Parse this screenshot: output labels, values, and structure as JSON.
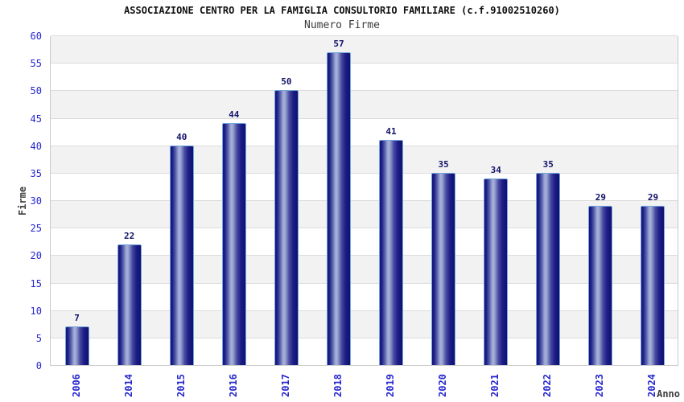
{
  "header": {
    "title": "ASSOCIAZIONE CENTRO PER LA FAMIGLIA CONSULTORIO FAMILIARE (c.f.91002510260)",
    "subtitle": "Numero Firme"
  },
  "axes": {
    "y_label": "Firme",
    "x_label": "Anno"
  },
  "chart_data": {
    "type": "bar",
    "title": "Numero Firme",
    "categories": [
      "2006",
      "2014",
      "2015",
      "2016",
      "2017",
      "2018",
      "2019",
      "2020",
      "2021",
      "2022",
      "2023",
      "2024"
    ],
    "values": [
      7,
      22,
      40,
      44,
      50,
      57,
      41,
      35,
      34,
      35,
      29,
      29
    ],
    "xlabel": "Anno",
    "ylabel": "Firme",
    "ylim": [
      0,
      60
    ],
    "ytick_step": 5,
    "grid": "horizontal alternating bands with gridlines every 5",
    "legend": false,
    "bar_value_labels": true
  },
  "colors": {
    "tick_label_blue": "#2626cf",
    "value_label_navy": "#12126a",
    "bar_edge_navy": "#15157b",
    "bar_highlight": "#a9b2da",
    "bar_outline_lightblue": "#72a6dc",
    "band_gray": "#f2f2f2",
    "band_white": "#ffffff",
    "grid_line": "#dcdcdc",
    "plot_border": "#c9c9c9",
    "title_color": "#101010",
    "subtitle_color": "#3c3c3c"
  }
}
